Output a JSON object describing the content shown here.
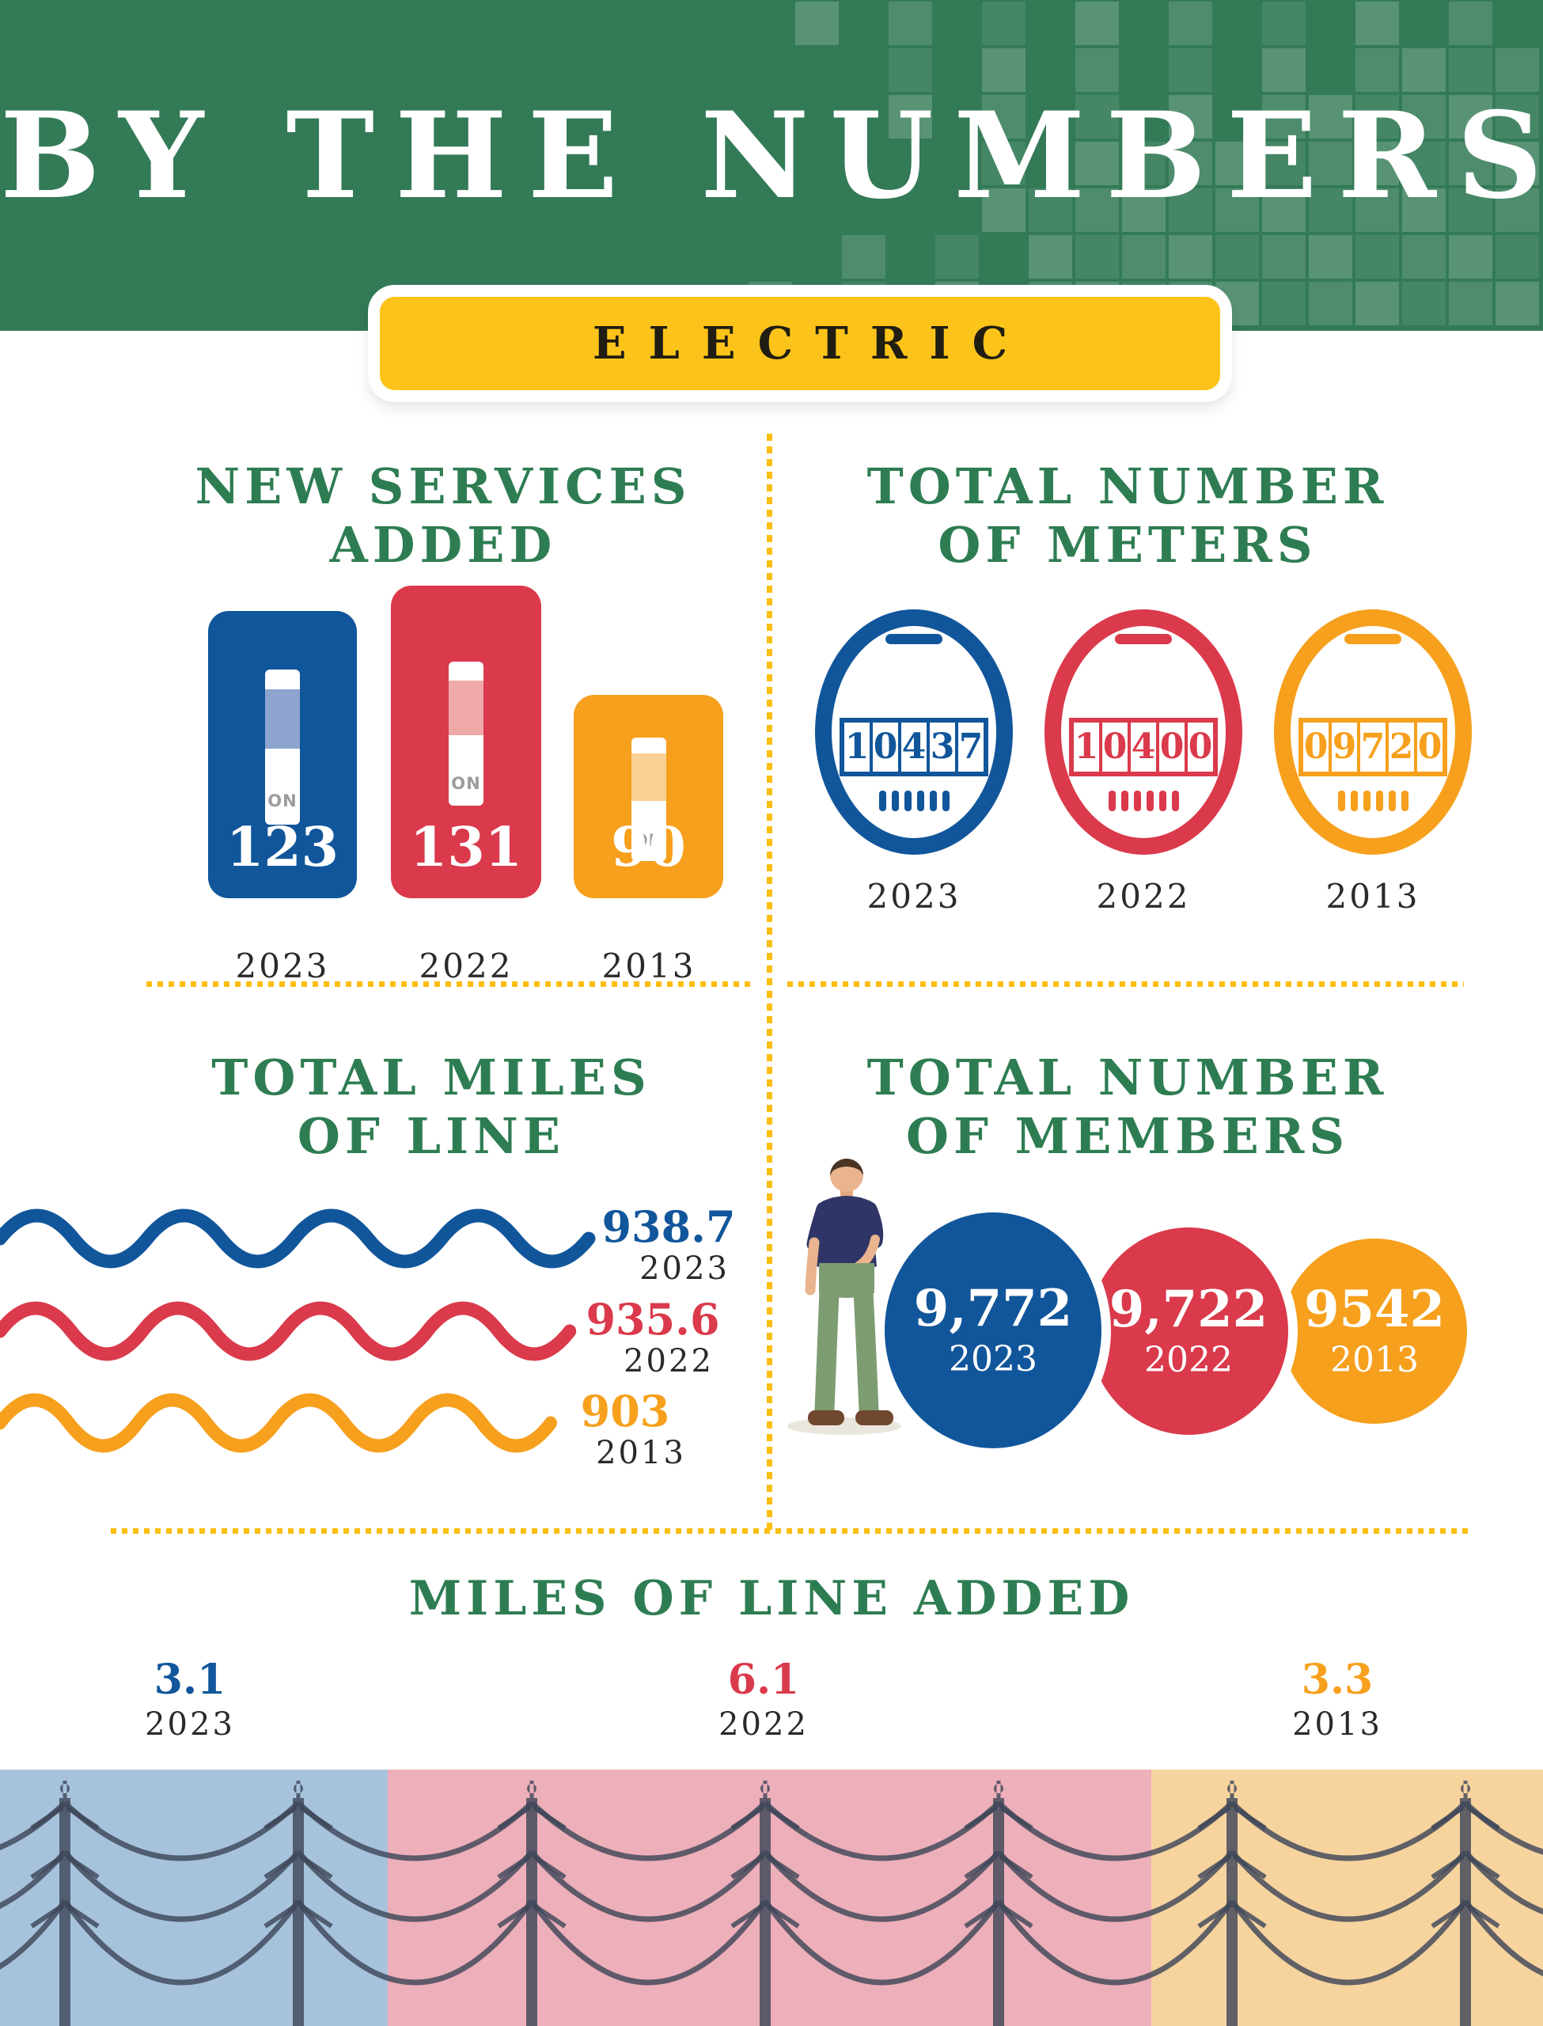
{
  "header": {
    "title": "BY THE NUMBERS",
    "badge": "ELECTRIC"
  },
  "colors": {
    "header_green": "#337A57",
    "heading_green": "#2E7D52",
    "badge_yellow": "#FCC41A",
    "dotted_divider": "#FCBE11",
    "blue": "#11569B",
    "red": "#DA3A4B",
    "orange": "#F6A01D",
    "band_blue": "#A7C3DC",
    "band_pink": "#EDAFB9",
    "band_orange": "#F7D49E",
    "pole_silhouette": "#3E4759",
    "year_text": "#2B2A28"
  },
  "sections": {
    "new_services": {
      "title_line1": "NEW SERVICES",
      "title_line2": "ADDED",
      "on_label": "ON",
      "items": [
        {
          "year": "2023",
          "value": "123"
        },
        {
          "year": "2022",
          "value": "131"
        },
        {
          "year": "2013",
          "value": "90"
        }
      ]
    },
    "meters": {
      "title_line1": "TOTAL NUMBER",
      "title_line2": "OF METERS",
      "items": [
        {
          "year": "2023",
          "reading": "10437",
          "digits": [
            "1",
            "0",
            "4",
            "3",
            "7"
          ]
        },
        {
          "year": "2022",
          "reading": "10400",
          "digits": [
            "1",
            "0",
            "4",
            "0",
            "0"
          ]
        },
        {
          "year": "2013",
          "reading": "09720",
          "digits": [
            "0",
            "9",
            "7",
            "2",
            "0"
          ]
        }
      ]
    },
    "total_miles": {
      "title_line1": "TOTAL MILES",
      "title_line2": "OF LINE",
      "items": [
        {
          "year": "2023",
          "value": "938.7"
        },
        {
          "year": "2022",
          "value": "935.6"
        },
        {
          "year": "2013",
          "value": "903"
        }
      ]
    },
    "members": {
      "title_line1": "TOTAL NUMBER",
      "title_line2": "OF MEMBERS",
      "items": [
        {
          "year": "2023",
          "value": "9,772"
        },
        {
          "year": "2022",
          "value": "9,722"
        },
        {
          "year": "2013",
          "value": "9542"
        }
      ]
    },
    "line_added": {
      "title": "MILES OF LINE ADDED",
      "items": [
        {
          "year": "2023",
          "value": "3.1"
        },
        {
          "year": "2022",
          "value": "6.1"
        },
        {
          "year": "2013",
          "value": "3.3"
        }
      ]
    }
  },
  "chart_data": [
    {
      "type": "bar",
      "title": "NEW SERVICES ADDED",
      "categories": [
        "2023",
        "2022",
        "2013"
      ],
      "values": [
        123,
        131,
        90
      ],
      "colors": [
        "#11569B",
        "#DA3A4B",
        "#F6A01D"
      ],
      "legend_position": "none",
      "grid": false
    },
    {
      "type": "table",
      "title": "TOTAL NUMBER OF METERS",
      "categories": [
        "2023",
        "2022",
        "2013"
      ],
      "values": [
        10437,
        10400,
        9720
      ],
      "display_values": [
        "10437",
        "10400",
        "09720"
      ],
      "colors": [
        "#11569B",
        "#DA3A4B",
        "#F6A01D"
      ]
    },
    {
      "type": "line",
      "title": "TOTAL MILES OF LINE",
      "categories": [
        "2023",
        "2022",
        "2013"
      ],
      "values": [
        938.7,
        935.6,
        903
      ],
      "colors": [
        "#11569B",
        "#DA3A4B",
        "#F6A01D"
      ]
    },
    {
      "type": "bar",
      "title": "TOTAL NUMBER OF MEMBERS",
      "categories": [
        "2023",
        "2022",
        "2013"
      ],
      "values": [
        9772,
        9722,
        9542
      ],
      "display_values": [
        "9,772",
        "9,722",
        "9542"
      ],
      "colors": [
        "#11569B",
        "#DA3A4B",
        "#F6A01D"
      ]
    },
    {
      "type": "bar",
      "title": "MILES OF LINE ADDED",
      "categories": [
        "2023",
        "2022",
        "2013"
      ],
      "values": [
        3.1,
        6.1,
        3.3
      ],
      "colors": [
        "#11569B",
        "#DA3A4B",
        "#F6A01D"
      ]
    }
  ]
}
